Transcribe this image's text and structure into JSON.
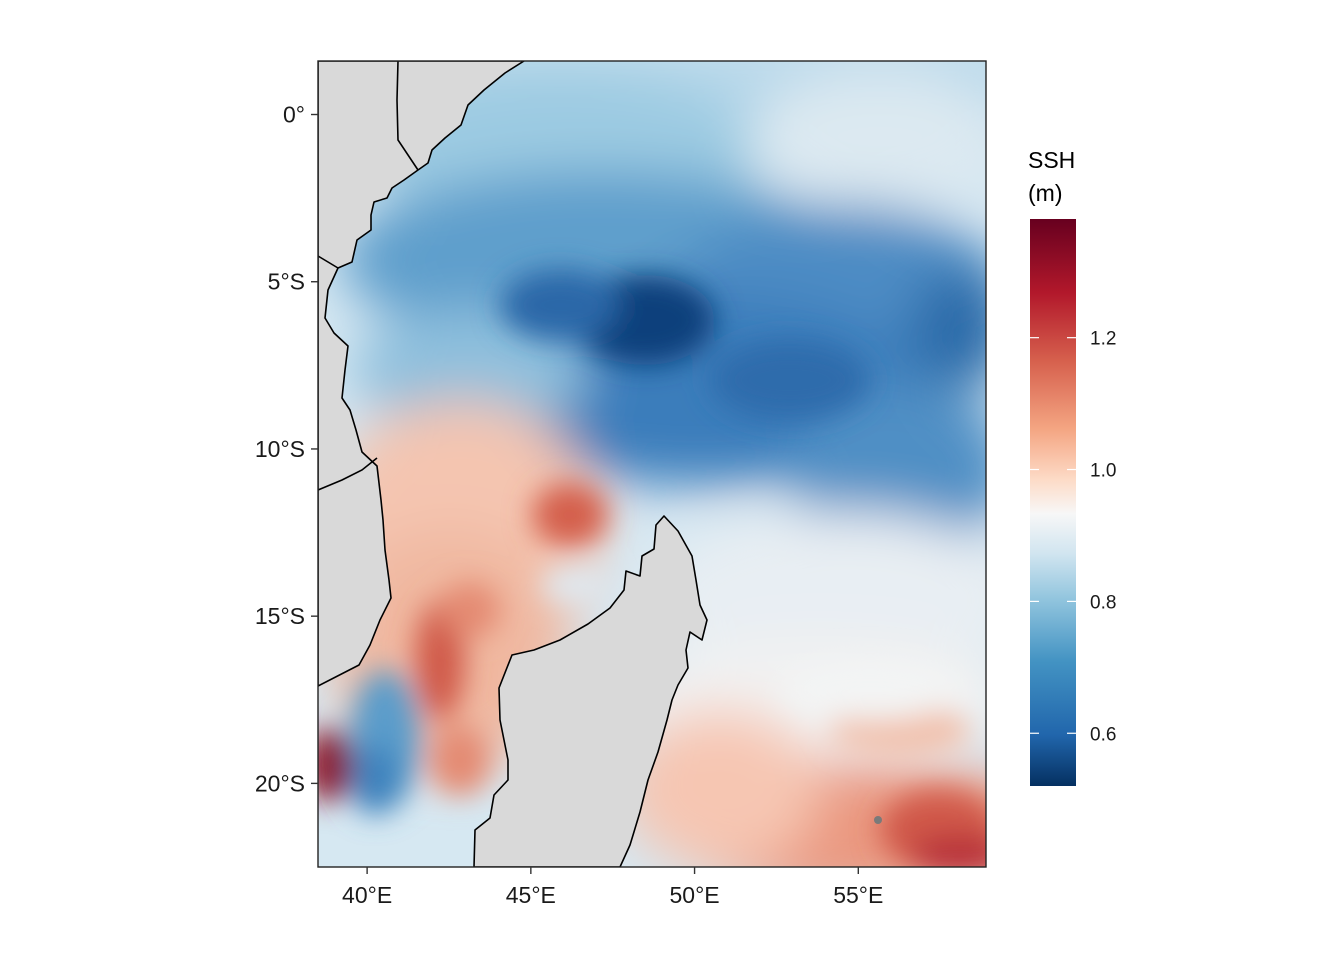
{
  "map": {
    "xaxis": {
      "ticks": [
        {
          "value": 40,
          "label": "40°E"
        },
        {
          "value": 45,
          "label": "45°E"
        },
        {
          "value": 50,
          "label": "50°E"
        },
        {
          "value": 55,
          "label": "55°E"
        }
      ]
    },
    "yaxis": {
      "ticks": [
        {
          "value": 0,
          "label": "0°"
        },
        {
          "value": -5,
          "label": "5°S"
        },
        {
          "value": -10,
          "label": "10°S"
        },
        {
          "value": -15,
          "label": "15°S"
        },
        {
          "value": -20,
          "label": "20°S"
        }
      ]
    },
    "extent": {
      "lon": [
        38.5,
        58.9
      ],
      "lat": [
        -22.5,
        1.6
      ]
    },
    "land_color": "#d9d9d9",
    "coast_color": "#000000"
  },
  "legend": {
    "title_line1": "SSH",
    "title_line2": "(m)",
    "range": [
      0.52,
      1.38
    ],
    "ticks": [
      {
        "value": 0.6,
        "label": "0.6"
      },
      {
        "value": 0.8,
        "label": "0.8"
      },
      {
        "value": 1.0,
        "label": "1.0"
      },
      {
        "value": 1.2,
        "label": "1.2"
      }
    ],
    "colors": [
      "#053061",
      "#2166ac",
      "#4393c3",
      "#92c5de",
      "#d1e5f0",
      "#f7f7f7",
      "#fddbc7",
      "#f4a582",
      "#d6604d",
      "#b2182b",
      "#67001f"
    ]
  }
}
